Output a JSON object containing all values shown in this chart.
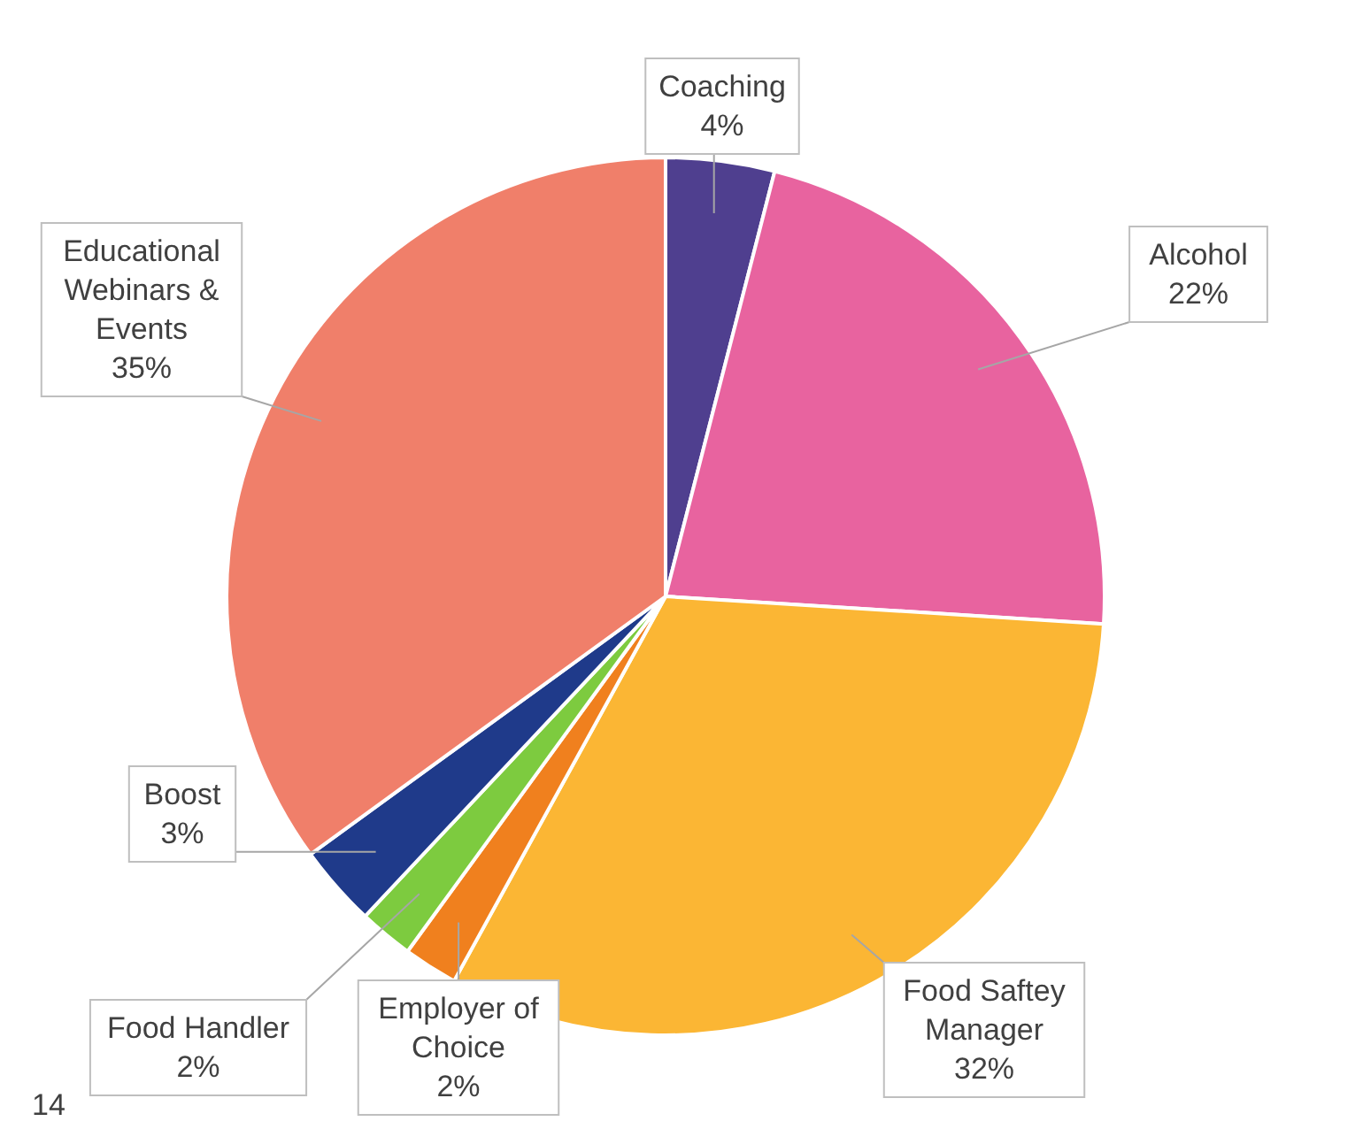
{
  "chart_data": {
    "type": "pie",
    "categories": [
      "Coaching",
      "Alcohol",
      "Food Saftey Manager",
      "Employer of Choice",
      "Food Handler",
      "Boost",
      "Educational Webinars & Events"
    ],
    "values": [
      4,
      22,
      32,
      2,
      2,
      3,
      35
    ],
    "colors": [
      "#4f3f8f",
      "#e8639f",
      "#fbb634",
      "#f0801e",
      "#7dcb3f",
      "#1f3a8a",
      "#f07f6a"
    ],
    "value_labels": [
      "4%",
      "22%",
      "32%",
      "2%",
      "2%",
      "3%",
      "35%"
    ],
    "annotations": [
      "14"
    ]
  }
}
